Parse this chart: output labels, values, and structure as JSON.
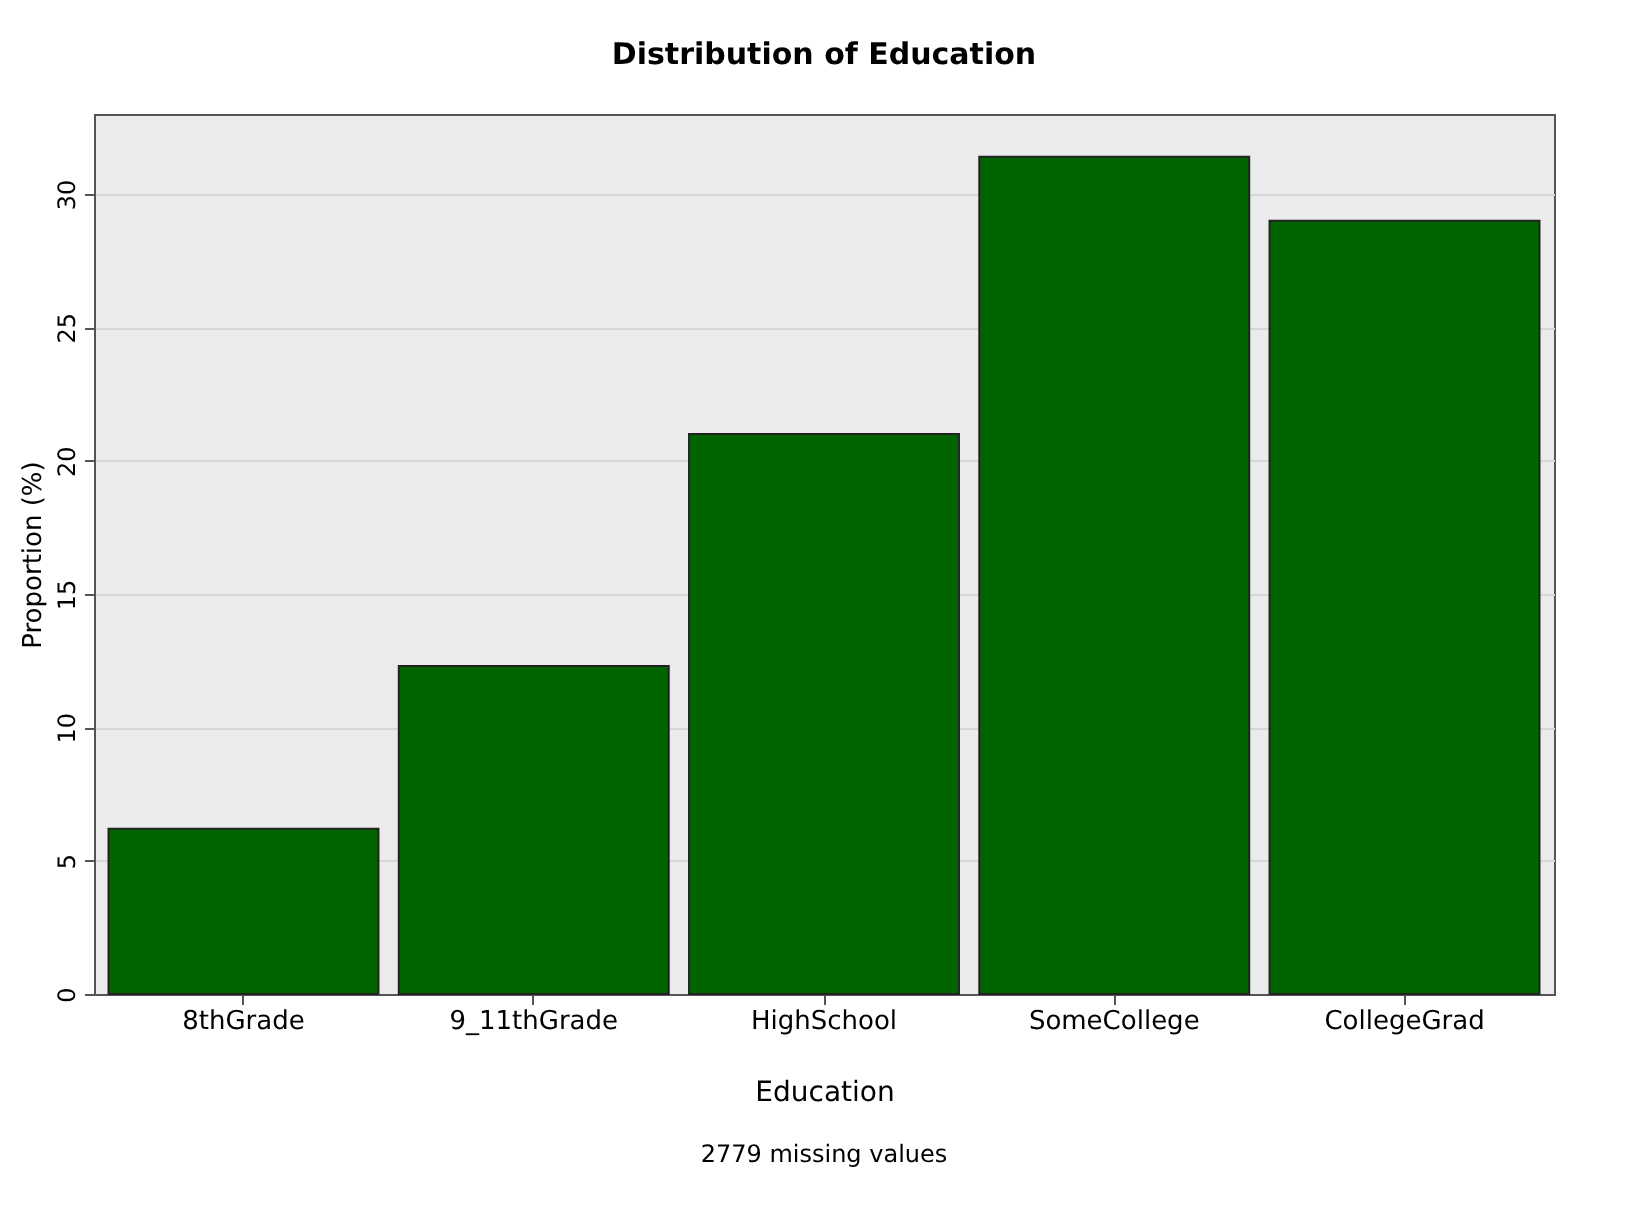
{
  "chart_data": {
    "type": "bar",
    "title": "Distribution of Education",
    "xlabel": "Education",
    "ylabel": "Proportion (%)",
    "categories": [
      "8thGrade",
      "9_11thGrade",
      "HighSchool",
      "SomeCollege",
      "CollegeGrad"
    ],
    "values": [
      6.2,
      12.3,
      21.0,
      31.4,
      29.0
    ],
    "color": "#006400",
    "ylim": [
      0,
      33
    ],
    "yticks": [
      0,
      5,
      10,
      15,
      20,
      25,
      30
    ],
    "grid": "y",
    "annotations": [
      "2779 missing values"
    ]
  }
}
